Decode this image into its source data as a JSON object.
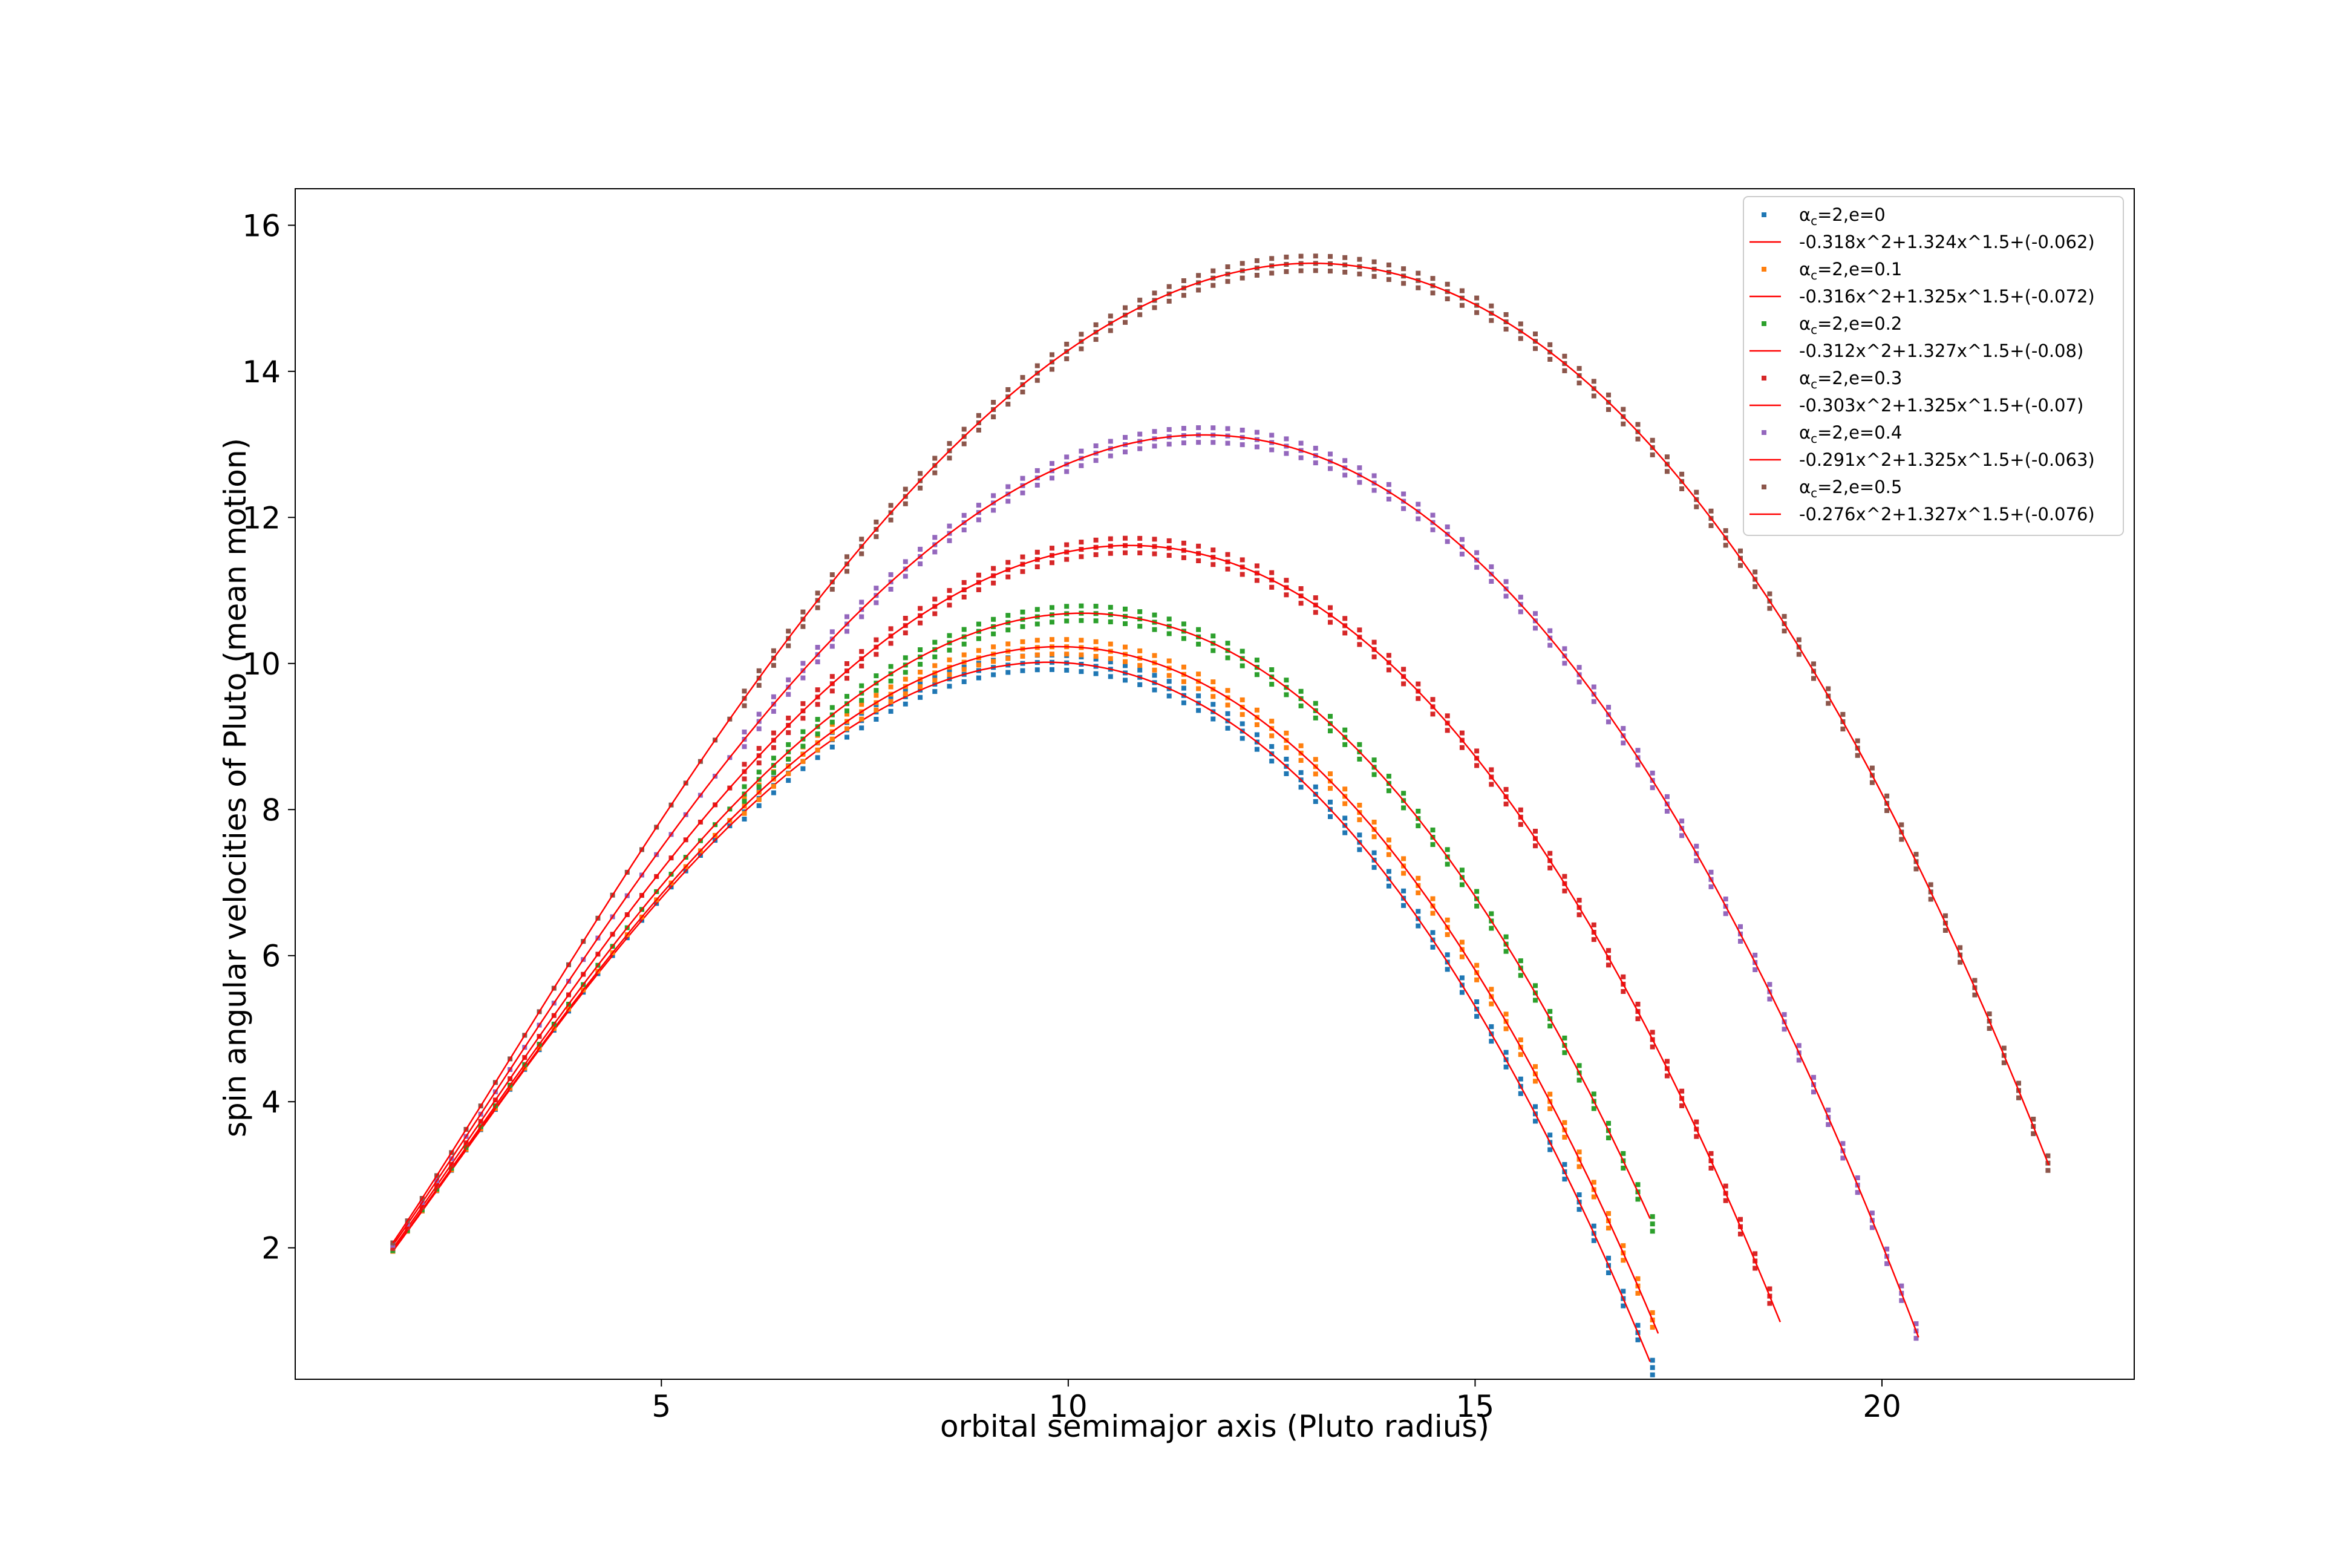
{
  "chart_data": {
    "type": "scatter",
    "xlabel": "orbital semimajor axis (Pluto radius)",
    "ylabel": "spin angular velocities of Pluto (mean motion)",
    "xlim": [
      0.5,
      23.1
    ],
    "ylim": [
      0.2,
      16.5
    ],
    "xticks": [
      5,
      10,
      15,
      20
    ],
    "yticks": [
      2,
      4,
      6,
      8,
      10,
      12,
      14,
      16
    ],
    "grid": false,
    "legend_placement": "top-right",
    "fit_color": "#ff0000",
    "x_start": 1.7,
    "x_step": 0.18,
    "series": [
      {
        "name": "αc=2,e=0",
        "legend_label": {
          "alpha": "α",
          "sub": "c",
          "rest": "=2,e=0"
        },
        "color": "#1f77b4",
        "x_end": 17.1,
        "fit_name": "-0.318x^2+1.324x^1.5+(-0.062)",
        "fit": {
          "a": -0.318,
          "b": 1.324,
          "c": -0.062
        }
      },
      {
        "name": "αc=2,e=0.1",
        "legend_label": {
          "alpha": "α",
          "sub": "c",
          "rest": "=2,e=0.1"
        },
        "color": "#ff7f0e",
        "x_end": 17.2,
        "fit_name": "-0.316x^2+1.325x^1.5+(-0.072)",
        "fit": {
          "a": -0.316,
          "b": 1.325,
          "c": -0.072
        }
      },
      {
        "name": "αc=2,e=0.2",
        "legend_label": {
          "alpha": "α",
          "sub": "c",
          "rest": "=2,e=0.2"
        },
        "color": "#2ca02c",
        "x_end": 17.1,
        "fit_name": "-0.312x^2+1.327x^1.5+(-0.08)",
        "fit": {
          "a": -0.312,
          "b": 1.327,
          "c": -0.08
        }
      },
      {
        "name": "αc=2,e=0.3",
        "legend_label": {
          "alpha": "α",
          "sub": "c",
          "rest": "=2,e=0.3"
        },
        "color": "#d62728",
        "x_end": 18.7,
        "fit_name": "-0.303x^2+1.325x^1.5+(-0.07)",
        "fit": {
          "a": -0.303,
          "b": 1.325,
          "c": -0.07
        }
      },
      {
        "name": "αc=2,e=0.4",
        "legend_label": {
          "alpha": "α",
          "sub": "c",
          "rest": "=2,e=0.4"
        },
        "color": "#9467bd",
        "x_end": 20.4,
        "fit_name": "-0.291x^2+1.325x^1.5+(-0.063)",
        "fit": {
          "a": -0.291,
          "b": 1.325,
          "c": -0.063
        }
      },
      {
        "name": "αc=2,e=0.5",
        "legend_label": {
          "alpha": "α",
          "sub": "c",
          "rest": "=2,e=0.5"
        },
        "color": "#8c564b",
        "x_end": 22.0,
        "fit_name": "-0.276x^2+1.327x^1.5+(-0.076)",
        "fit": {
          "a": -0.276,
          "b": 1.327,
          "c": -0.076
        }
      }
    ]
  }
}
